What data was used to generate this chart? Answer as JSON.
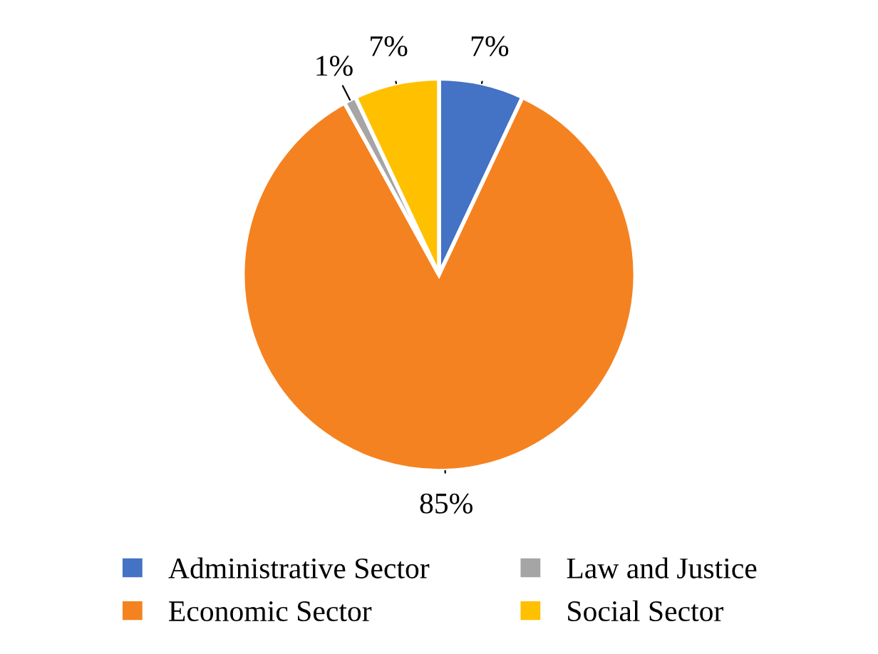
{
  "chart_data": {
    "type": "pie",
    "categories": [
      "Administrative Sector",
      "Economic Sector",
      "Law and Justice",
      "Social Sector"
    ],
    "values": [
      7,
      85,
      1,
      7
    ],
    "colors": [
      "#4472c4",
      "#f58220",
      "#a5a5a5",
      "#ffc000"
    ],
    "value_labels": [
      "7%",
      "85%",
      "1%",
      "7%"
    ],
    "legend": "bottom"
  }
}
